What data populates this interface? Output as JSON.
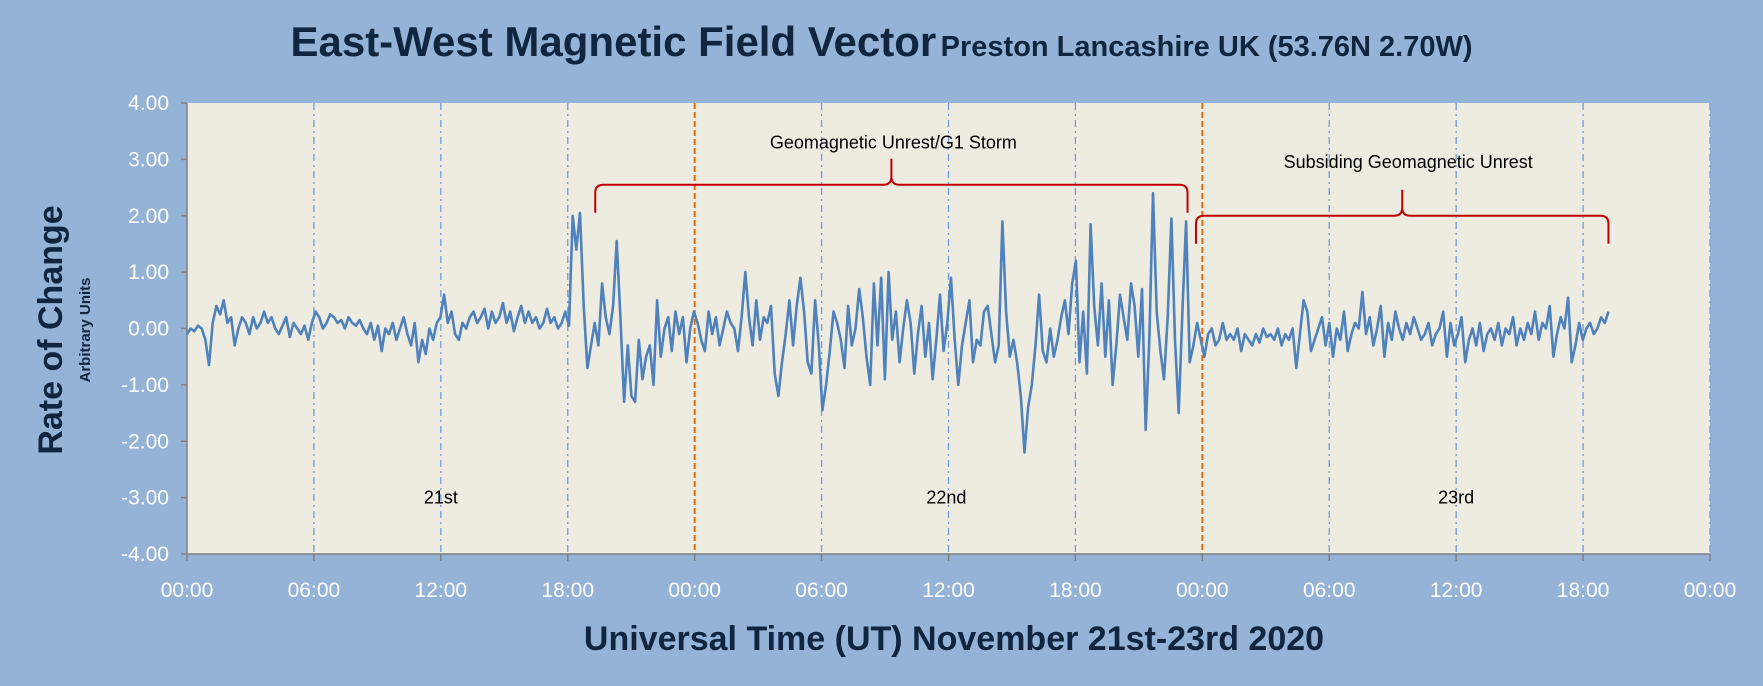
{
  "chart_data": {
    "type": "line",
    "title": "East-West Magnetic Field Vector",
    "subtitle": "Preston Lancashire UK (53.76N 2.70W)",
    "xlabel": "Universal Time (UT) November 21st-23rd 2020",
    "ylabel": "Rate of Change",
    "ylabel_sub": "Arbitrary Units",
    "ylim": [
      -4,
      4
    ],
    "xlim_hours": [
      0,
      72
    ],
    "y_ticks": [
      "4.00",
      "3.00",
      "2.00",
      "1.00",
      "0.00",
      "-1.00",
      "-2.00",
      "-3.00",
      "-4.00"
    ],
    "x_ticks": [
      "00:00",
      "06:00",
      "12:00",
      "18:00",
      "00:00",
      "06:00",
      "12:00",
      "18:00",
      "00:00",
      "06:00",
      "12:00",
      "18:00",
      "00:00"
    ],
    "grid": "vertical dash-dot every 6 hours",
    "colors": {
      "line": "#4f81bd",
      "plot_bg": "#eeece1",
      "page_bg": "#95b3d7",
      "grid": "#6f9be0",
      "day_divider": "#e46c0a",
      "bracket": "#c00000",
      "text_dark": "#10253f"
    },
    "day_labels": [
      "21st",
      "22nd",
      "23rd"
    ],
    "day_dividers_hours": [
      24,
      48
    ],
    "annotations": [
      {
        "text": "Geomagnetic Unrest/G1 Storm",
        "x_start": 19.3,
        "x_end": 47.3
      },
      {
        "text": "Subsiding Geomagnetic Unrest",
        "x_start": 47.7,
        "x_end": 67.2
      }
    ],
    "series": [
      {
        "x_start_hours": 0,
        "x_end_hours": 67.2,
        "values": [
          -0.1,
          0.0,
          -0.05,
          0.05,
          0.0,
          -0.2,
          -0.65,
          0.1,
          0.4,
          0.25,
          0.5,
          0.1,
          0.2,
          -0.3,
          0.0,
          0.2,
          0.1,
          -0.1,
          0.2,
          0.0,
          0.1,
          0.3,
          0.1,
          0.2,
          0.0,
          -0.1,
          0.05,
          0.2,
          -0.15,
          0.1,
          0.0,
          -0.1,
          0.05,
          -0.2,
          0.1,
          0.3,
          0.2,
          0.0,
          0.1,
          0.25,
          0.2,
          0.1,
          0.15,
          0.0,
          0.2,
          0.1,
          0.05,
          0.15,
          0.0,
          -0.1,
          0.1,
          -0.2,
          0.05,
          -0.4,
          0.0,
          -0.1,
          0.1,
          -0.2,
          0.0,
          0.2,
          -0.1,
          -0.3,
          0.1,
          -0.6,
          -0.2,
          -0.45,
          0.0,
          -0.2,
          0.1,
          0.2,
          0.6,
          0.1,
          0.3,
          -0.1,
          -0.2,
          0.1,
          0.0,
          0.2,
          0.3,
          0.1,
          0.2,
          0.35,
          0.0,
          0.3,
          0.1,
          0.2,
          0.45,
          0.1,
          0.3,
          -0.05,
          0.2,
          0.4,
          0.1,
          0.3,
          0.1,
          0.2,
          0.0,
          0.1,
          0.35,
          0.1,
          0.2,
          0.0,
          0.1,
          0.3,
          0.05,
          2.0,
          1.4,
          2.05,
          0.4,
          -0.7,
          -0.3,
          0.1,
          -0.3,
          0.8,
          0.2,
          -0.1,
          0.4,
          1.55,
          0.2,
          -1.3,
          -0.3,
          -1.2,
          -1.3,
          -0.2,
          -0.9,
          -0.5,
          -0.3,
          -1.0,
          0.5,
          -0.5,
          0.0,
          0.2,
          -0.4,
          0.3,
          -0.1,
          0.2,
          -0.6,
          0.0,
          0.3,
          0.1,
          -0.2,
          -0.4,
          0.3,
          -0.1,
          0.2,
          -0.3,
          0.0,
          0.3,
          0.1,
          0.0,
          -0.4,
          0.2,
          1.0,
          0.2,
          -0.3,
          0.5,
          -0.2,
          0.2,
          0.1,
          0.4,
          -0.8,
          -1.2,
          -0.6,
          -0.1,
          0.5,
          -0.3,
          0.4,
          0.9,
          0.3,
          -0.6,
          -0.8,
          0.5,
          -0.3,
          -1.45,
          -1.0,
          -0.4,
          0.3,
          0.1,
          -0.2,
          -0.7,
          0.4,
          -0.3,
          0.0,
          0.7,
          0.2,
          -0.5,
          -1.0,
          0.8,
          -0.3,
          0.9,
          -0.9,
          1.0,
          -0.2,
          0.3,
          -0.6,
          0.0,
          0.5,
          0.1,
          -0.8,
          -0.1,
          0.4,
          -0.5,
          0.1,
          -0.9,
          -0.2,
          0.6,
          -0.4,
          0.1,
          0.9,
          -0.2,
          -1.0,
          -0.3,
          0.1,
          0.5,
          -0.6,
          -0.2,
          -0.3,
          0.3,
          0.4,
          -0.1,
          -0.6,
          -0.3,
          1.9,
          0.3,
          -0.5,
          -0.2,
          -0.6,
          -1.2,
          -2.2,
          -1.4,
          -1.0,
          -0.3,
          0.6,
          -0.4,
          -0.6,
          0.0,
          -0.5,
          -0.2,
          0.2,
          0.5,
          -0.1,
          0.8,
          1.2,
          -0.6,
          0.3,
          -0.8,
          1.85,
          0.4,
          -0.3,
          0.8,
          -0.5,
          0.5,
          -1.0,
          -0.3,
          0.6,
          0.2,
          -0.2,
          0.8,
          0.4,
          -0.5,
          0.7,
          -1.8,
          -0.2,
          2.4,
          0.3,
          -0.4,
          -0.9,
          0.2,
          1.95,
          -0.2,
          -1.5,
          0.3,
          1.9,
          -0.6,
          -0.3,
          0.1,
          -0.2,
          -0.5,
          -0.1,
          0.0,
          -0.3,
          -0.2,
          0.1,
          -0.2,
          -0.1,
          -0.2,
          0.0,
          -0.4,
          -0.1,
          -0.2,
          -0.3,
          -0.1,
          -0.25,
          0.0,
          -0.15,
          -0.1,
          -0.2,
          0.0,
          -0.3,
          -0.1,
          -0.2,
          0.0,
          -0.7,
          -0.1,
          0.5,
          0.3,
          -0.4,
          -0.2,
          0.0,
          0.2,
          -0.3,
          0.1,
          -0.5,
          0.0,
          -0.2,
          0.3,
          -0.4,
          -0.1,
          0.1,
          0.0,
          0.65,
          -0.1,
          0.2,
          -0.3,
          0.0,
          0.4,
          -0.5,
          0.1,
          -0.2,
          0.3,
          0.0,
          -0.2,
          0.1,
          -0.1,
          0.2,
          0.0,
          -0.2,
          -0.1,
          0.1,
          -0.3,
          -0.1,
          0.0,
          0.3,
          -0.5,
          0.1,
          -0.3,
          -0.1,
          0.2,
          -0.6,
          -0.2,
          0.0,
          -0.3,
          0.1,
          -0.4,
          -0.1,
          0.0,
          -0.2,
          0.1,
          -0.3,
          0.0,
          -0.1,
          0.2,
          -0.3,
          0.0,
          -0.2,
          0.1,
          -0.1,
          0.3,
          -0.2,
          0.1,
          0.0,
          0.4,
          -0.5,
          -0.1,
          0.2,
          0.0,
          0.55,
          -0.6,
          -0.3,
          0.1,
          -0.2,
          0.0,
          0.1,
          -0.1,
          0.0,
          0.2,
          0.1,
          0.3
        ]
      }
    ]
  }
}
